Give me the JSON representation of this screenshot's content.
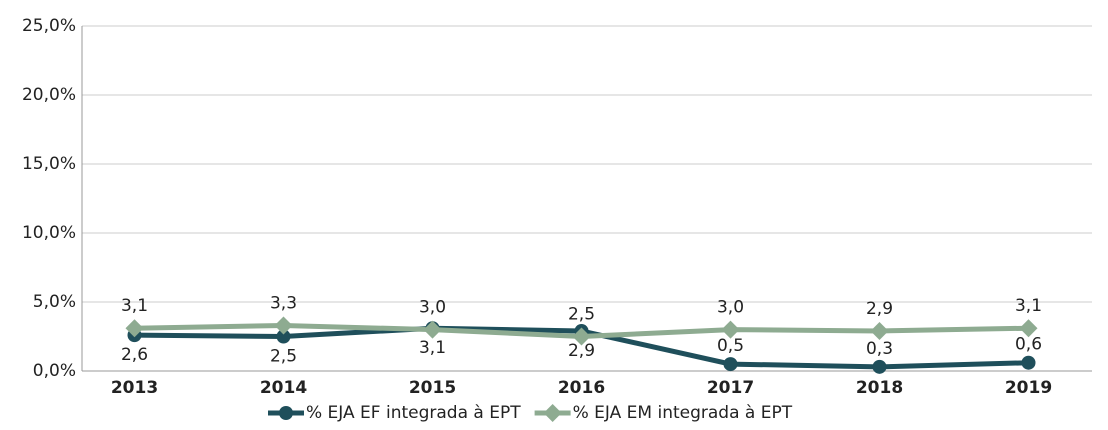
{
  "chart_data": {
    "type": "line",
    "categories": [
      "2013",
      "2014",
      "2015",
      "2016",
      "2017",
      "2018",
      "2019"
    ],
    "series": [
      {
        "name": "% EJA EF integrada à EPT",
        "color": "#1f4f5b",
        "marker": "circle",
        "values": [
          2.6,
          2.5,
          3.1,
          2.9,
          0.5,
          0.3,
          0.6
        ],
        "value_labels": [
          "2,6",
          "2,5",
          "3,1",
          "2,9",
          "0,5",
          "0,3",
          "0,6"
        ]
      },
      {
        "name": "% EJA EM integrada à EPT",
        "color": "#8eab91",
        "marker": "diamond",
        "values": [
          3.1,
          3.3,
          3.0,
          2.5,
          3.0,
          2.9,
          3.1
        ],
        "value_labels": [
          "3,1",
          "3,3",
          "3,0",
          "2,5",
          "3,0",
          "2,9",
          "3,1"
        ]
      }
    ],
    "ylim": [
      0,
      25
    ],
    "yticks": [
      {
        "value": 0,
        "label": "0,0%"
      },
      {
        "value": 5,
        "label": "5,0%"
      },
      {
        "value": 10,
        "label": "10,0%"
      },
      {
        "value": 15,
        "label": "15,0%"
      },
      {
        "value": 20,
        "label": "20,0%"
      },
      {
        "value": 25,
        "label": "25,0%"
      }
    ],
    "grid": true,
    "legend": "bottom"
  }
}
